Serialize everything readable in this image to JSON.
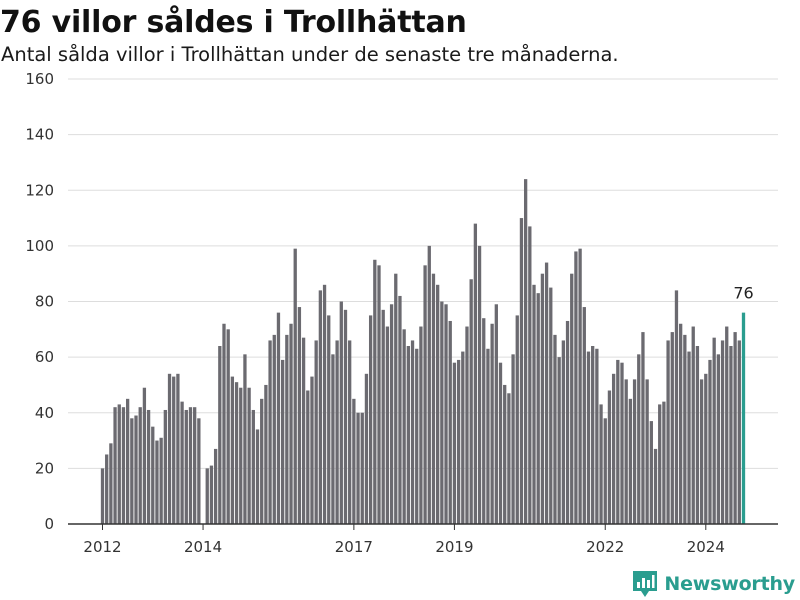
{
  "header": {
    "title": "76 villor såldes i Trollhättan",
    "subtitle": "Antal sålda villor i Trollhättan under de senaste tre månaderna."
  },
  "brand": {
    "name": "Newsworthy",
    "icon": "newsworthy-logo-icon"
  },
  "colors": {
    "bar": "#6b6a70",
    "highlight": "#2a9d8f",
    "grid": "#dddddd",
    "axis": "#333333"
  },
  "chart_data": {
    "type": "bar",
    "title": "76 villor såldes i Trollhättan",
    "subtitle": "Antal sålda villor i Trollhättan under de senaste tre månaderna.",
    "xlabel": "",
    "ylabel": "",
    "ylim": [
      0,
      160
    ],
    "yticks": [
      0,
      20,
      40,
      60,
      80,
      100,
      120,
      140,
      160
    ],
    "grid": true,
    "start_month": "2012-01",
    "end_month": "2024-12",
    "x_tick_labels": [
      {
        "label": "2012",
        "month": "2012-01"
      },
      {
        "label": "2014",
        "month": "2014-01"
      },
      {
        "label": "2017",
        "month": "2017-01"
      },
      {
        "label": "2019",
        "month": "2019-01"
      },
      {
        "label": "2022",
        "month": "2022-01"
      },
      {
        "label": "2024",
        "month": "2024-01"
      }
    ],
    "last_value_label": "76",
    "values": [
      20,
      25,
      29,
      42,
      43,
      42,
      45,
      38,
      39,
      42,
      49,
      41,
      35,
      30,
      31,
      41,
      54,
      53,
      54,
      44,
      41,
      42,
      42,
      38,
      null,
      20,
      21,
      27,
      64,
      72,
      70,
      53,
      51,
      49,
      61,
      49,
      41,
      34,
      45,
      50,
      66,
      68,
      76,
      59,
      68,
      72,
      99,
      78,
      67,
      48,
      53,
      66,
      84,
      86,
      75,
      61,
      66,
      80,
      77,
      66,
      45,
      40,
      40,
      54,
      75,
      95,
      93,
      77,
      71,
      79,
      90,
      82,
      70,
      64,
      66,
      63,
      71,
      93,
      100,
      90,
      86,
      80,
      79,
      73,
      58,
      59,
      62,
      71,
      88,
      108,
      100,
      74,
      63,
      72,
      79,
      58,
      50,
      47,
      61,
      75,
      110,
      124,
      107,
      86,
      83,
      90,
      94,
      85,
      68,
      60,
      66,
      73,
      90,
      98,
      99,
      78,
      62,
      64,
      63,
      43,
      38,
      48,
      54,
      59,
      58,
      52,
      45,
      52,
      61,
      69,
      52,
      37,
      27,
      43,
      44,
      66,
      69,
      84,
      72,
      68,
      62,
      71,
      64,
      52,
      54,
      59,
      67,
      61,
      66,
      71,
      64,
      69,
      66,
      76
    ]
  }
}
